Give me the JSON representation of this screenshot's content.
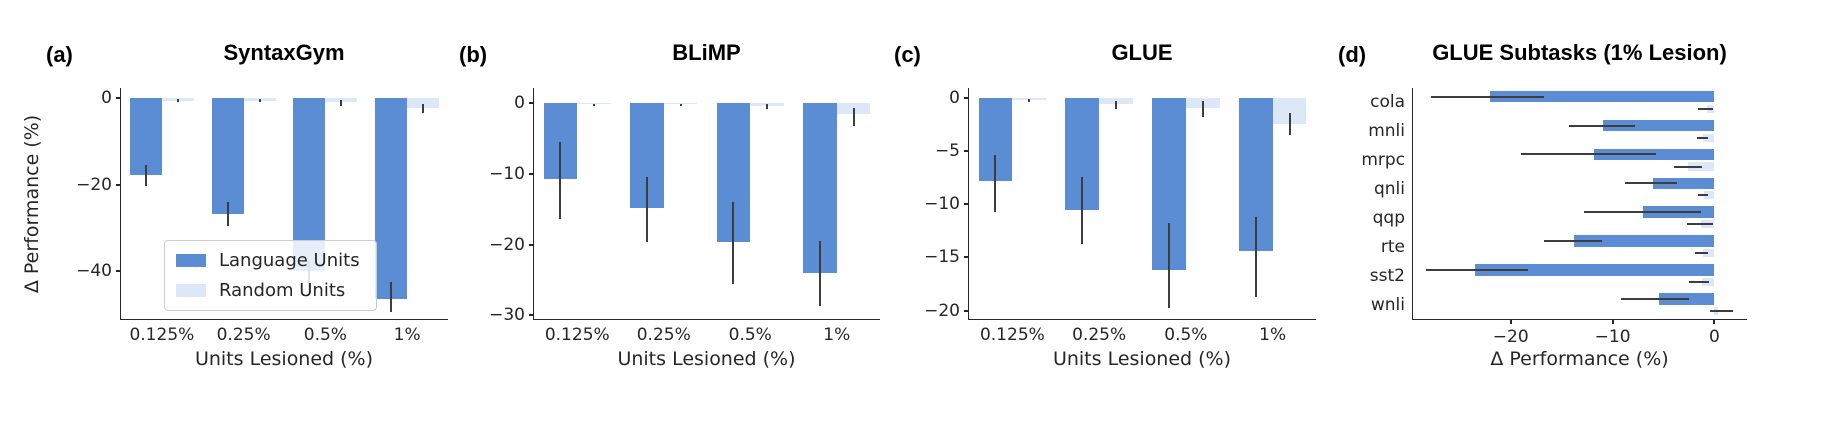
{
  "figure": {
    "colors": {
      "language": "#5b8dd5",
      "random": "#dce7f7",
      "error_bar": "#3d3d3d",
      "spine": "#262626",
      "text": "#262626",
      "background": "#ffffff"
    },
    "legend": {
      "position": "lower left of panel (a)",
      "items": [
        {
          "label": "Language Units",
          "color_key": "language"
        },
        {
          "label": "Random Units",
          "color_key": "random"
        }
      ]
    }
  },
  "chart_data": [
    {
      "id": "a",
      "panel_label": "(a)",
      "title": "SyntaxGym",
      "type": "bar",
      "orientation": "vertical",
      "xlabel": "Units Lesioned (%)",
      "ylabel": "Δ Performance (%)",
      "categories": [
        "0.125%",
        "0.25%",
        "0.5%",
        "1%"
      ],
      "ylim": [
        -51,
        2.3
      ],
      "yticks": [
        {
          "v": 0,
          "label": "0"
        },
        {
          "v": -20,
          "label": "−20"
        },
        {
          "v": -40,
          "label": "−40"
        }
      ],
      "grid": false,
      "series": [
        {
          "name": "Language Units",
          "color_key": "language",
          "values": [
            -17.7,
            -26.7,
            -40.0,
            -46.5
          ],
          "ci": [
            [
              -20.3,
              -15.5
            ],
            [
              -29.5,
              -24.0
            ],
            [
              -44.8,
              -37.8
            ],
            [
              -49.5,
              -42.5
            ]
          ]
        },
        {
          "name": "Random Units",
          "color_key": "random",
          "values": [
            -0.6,
            -0.6,
            -1.0,
            -2.3
          ],
          "ci": [
            [
              -0.9,
              -0.3
            ],
            [
              -0.9,
              -0.3
            ],
            [
              -1.8,
              -0.4
            ],
            [
              -3.5,
              -1.5
            ]
          ]
        }
      ]
    },
    {
      "id": "b",
      "panel_label": "(b)",
      "title": "BLiMP",
      "type": "bar",
      "orientation": "vertical",
      "xlabel": "Units Lesioned (%)",
      "ylabel": "",
      "categories": [
        "0.125%",
        "0.25%",
        "0.5%",
        "1%"
      ],
      "ylim": [
        -30.5,
        2.1
      ],
      "yticks": [
        {
          "v": 0,
          "label": "0"
        },
        {
          "v": -10,
          "label": "−10"
        },
        {
          "v": -20,
          "label": "−20"
        },
        {
          "v": -30,
          "label": "−30"
        }
      ],
      "grid": false,
      "series": [
        {
          "name": "Language Units",
          "color_key": "language",
          "values": [
            -10.8,
            -14.8,
            -19.7,
            -24.0
          ],
          "ci": [
            [
              -16.4,
              -5.5
            ],
            [
              -19.7,
              -10.4
            ],
            [
              -25.5,
              -14.0
            ],
            [
              -28.7,
              -19.5
            ]
          ]
        },
        {
          "name": "Random Units",
          "color_key": "random",
          "values": [
            -0.2,
            -0.2,
            -0.4,
            -1.6
          ],
          "ci": [
            [
              -0.4,
              -0.1
            ],
            [
              -0.4,
              -0.1
            ],
            [
              -0.8,
              -0.2
            ],
            [
              -3.3,
              -0.7
            ]
          ]
        }
      ]
    },
    {
      "id": "c",
      "panel_label": "(c)",
      "title": "GLUE",
      "type": "bar",
      "orientation": "vertical",
      "xlabel": "Units Lesioned (%)",
      "ylabel": "",
      "categories": [
        "0.125%",
        "0.25%",
        "0.5%",
        "1%"
      ],
      "ylim": [
        -20.8,
        0.95
      ],
      "yticks": [
        {
          "v": 0,
          "label": "0"
        },
        {
          "v": -5,
          "label": "−5"
        },
        {
          "v": -10,
          "label": "−10"
        },
        {
          "v": -15,
          "label": "−15"
        },
        {
          "v": -20,
          "label": "−20"
        }
      ],
      "grid": false,
      "series": [
        {
          "name": "Language Units",
          "color_key": "language",
          "values": [
            -7.8,
            -10.5,
            -16.2,
            -14.4
          ],
          "ci": [
            [
              -10.7,
              -5.4
            ],
            [
              -13.7,
              -7.4
            ],
            [
              -19.8,
              -11.8
            ],
            [
              -18.7,
              -11.2
            ]
          ]
        },
        {
          "name": "Random Units",
          "color_key": "random",
          "values": [
            -0.2,
            -0.6,
            -0.9,
            -2.4
          ],
          "ci": [
            [
              -0.4,
              -0.1
            ],
            [
              -1.0,
              -0.3
            ],
            [
              -1.8,
              -0.3
            ],
            [
              -3.5,
              -1.4
            ]
          ]
        }
      ]
    },
    {
      "id": "d",
      "panel_label": "(d)",
      "title": "GLUE Subtasks (1% Lesion)",
      "type": "bar",
      "orientation": "horizontal",
      "xlabel": "Δ Performance (%)",
      "ylabel": "",
      "categories": [
        "cola",
        "mnli",
        "mrpc",
        "qnli",
        "qqp",
        "rte",
        "sst2",
        "wnli"
      ],
      "xlim": [
        -29.6,
        3.2
      ],
      "xticks": [
        {
          "v": -20,
          "label": "−20"
        },
        {
          "v": -10,
          "label": "−10"
        },
        {
          "v": 0,
          "label": "0"
        }
      ],
      "grid": false,
      "series": [
        {
          "name": "Language Units",
          "color_key": "language",
          "values": [
            -22.0,
            -10.9,
            -11.8,
            -6.0,
            -7.0,
            -13.8,
            -23.5,
            -5.4
          ],
          "ci": [
            [
              -27.8,
              -16.7
            ],
            [
              -14.3,
              -7.8
            ],
            [
              -19.0,
              -5.7
            ],
            [
              -8.8,
              -3.7
            ],
            [
              -12.8,
              -1.3
            ],
            [
              -16.7,
              -11.0
            ],
            [
              -28.3,
              -18.3
            ],
            [
              -9.2,
              -2.5
            ]
          ]
        },
        {
          "name": "Random Units",
          "color_key": "random",
          "values": [
            -0.7,
            -1.1,
            -2.6,
            -1.0,
            -1.3,
            -1.1,
            -1.2,
            0.4
          ],
          "ci": [
            [
              -1.6,
              -0.1
            ],
            [
              -1.7,
              -0.6
            ],
            [
              -4.0,
              -1.2
            ],
            [
              -1.6,
              -0.6
            ],
            [
              -2.7,
              -0.1
            ],
            [
              -1.9,
              -0.6
            ],
            [
              -2.5,
              -0.5
            ],
            [
              -0.4,
              1.8
            ]
          ]
        }
      ]
    }
  ]
}
